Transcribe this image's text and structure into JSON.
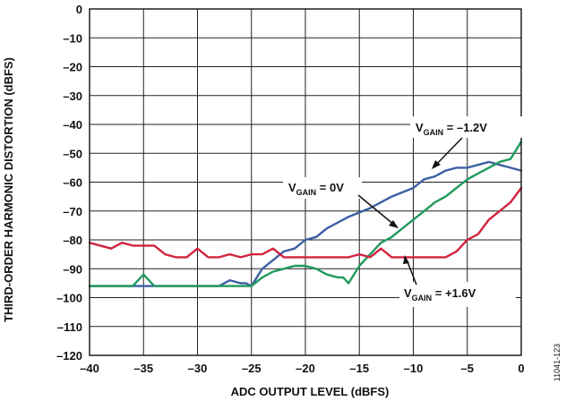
{
  "chart_data": {
    "type": "line",
    "xlabel": "ADC OUTPUT LEVEL (dBFS)",
    "ylabel": "THIRD-ORDER HARMONIC DISTORTION (dBFS)",
    "xlim": [
      -40,
      0
    ],
    "ylim": [
      -120,
      0
    ],
    "xticks": [
      -40,
      -35,
      -30,
      -25,
      -20,
      -15,
      -10,
      -5,
      0
    ],
    "xtick_labels": [
      "–40",
      "–35",
      "–30",
      "–25",
      "–20",
      "–15",
      "–10",
      "–5",
      "0"
    ],
    "yticks": [
      0,
      -10,
      -20,
      -30,
      -40,
      -50,
      -60,
      -70,
      -80,
      -90,
      -100,
      -110,
      -120
    ],
    "ytick_labels": [
      "0",
      "–10",
      "–20",
      "–30",
      "–40",
      "–50",
      "–60",
      "–70",
      "–80",
      "–90",
      "–100",
      "–110",
      "–120"
    ],
    "grid": true,
    "figure_id": "11041-123",
    "series": [
      {
        "color": "#3b5fa3",
        "x": [
          -40,
          -38,
          -36,
          -34,
          -32,
          -30,
          -28,
          -27,
          -26,
          -25.5,
          -25,
          -24.5,
          -24,
          -23,
          -22,
          -21,
          -20,
          -19,
          -18,
          -16,
          -14,
          -12,
          -10,
          -9,
          -8,
          -7,
          -6,
          -5,
          -4,
          -3,
          -2,
          -1,
          0
        ],
        "y": [
          -96,
          -96,
          -96,
          -96,
          -96,
          -96,
          -96,
          -94,
          -95,
          -95,
          -96,
          -93,
          -90,
          -87,
          -84,
          -83,
          -80,
          -79,
          -76,
          -72,
          -69,
          -65,
          -62,
          -59,
          -58,
          -56,
          -55,
          -55,
          -54,
          -53,
          -54,
          -55,
          -56
        ]
      },
      {
        "color": "#1f9a5c",
        "x": [
          -40,
          -38,
          -36,
          -35,
          -34,
          -32,
          -30,
          -28,
          -26,
          -25,
          -24,
          -23,
          -22,
          -21,
          -20,
          -19,
          -18,
          -17,
          -16.5,
          -16,
          -15.5,
          -15,
          -14,
          -13,
          -12,
          -11,
          -10,
          -9,
          -8,
          -7,
          -6,
          -5,
          -4,
          -3,
          -2,
          -1,
          0
        ],
        "y": [
          -96,
          -96,
          -96,
          -92,
          -96,
          -96,
          -96,
          -96,
          -96,
          -96,
          -93,
          -91,
          -90,
          -89,
          -89,
          -90,
          -92,
          -93,
          -93,
          -95,
          -92,
          -89,
          -85,
          -81,
          -79,
          -76,
          -73,
          -70,
          -67,
          -65,
          -62,
          -59,
          -57,
          -55,
          -53,
          -52,
          -46
        ]
      },
      {
        "color": "#d2233f",
        "x": [
          -40,
          -38,
          -37,
          -36,
          -35,
          -34,
          -33,
          -32,
          -31,
          -30,
          -29,
          -28,
          -27,
          -26,
          -25,
          -24,
          -23,
          -22,
          -21,
          -20,
          -18,
          -16,
          -15,
          -14,
          -13,
          -12,
          -11,
          -10,
          -9,
          -8,
          -7,
          -6,
          -5,
          -4,
          -3,
          -2,
          -1,
          0
        ],
        "y": [
          -81,
          -83,
          -81,
          -82,
          -82,
          -82,
          -85,
          -86,
          -86,
          -83,
          -86,
          -86,
          -85,
          -86,
          -85,
          -85,
          -83,
          -86,
          -86,
          -86,
          -86,
          -86,
          -85,
          -86,
          -83,
          -86,
          -86,
          -86,
          -86,
          -86,
          -86,
          -84,
          -80,
          -78,
          -73,
          -70,
          -67,
          -62
        ]
      }
    ],
    "annotations": [
      {
        "main": "V",
        "sub": "GAIN",
        "rest": " = –1.2V"
      },
      {
        "main": "V",
        "sub": "GAIN",
        "rest": " = 0V"
      },
      {
        "main": "V",
        "sub": "GAIN",
        "rest": " = +1.6V"
      }
    ]
  }
}
